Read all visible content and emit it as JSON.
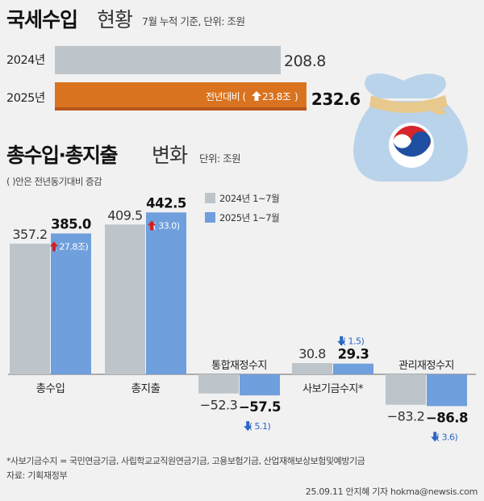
{
  "section1": {
    "title_bold": "국세수입",
    "title_light": "현황",
    "unit": "7월 누적 기준, 단위: 조원",
    "rows": [
      {
        "year": "2024년",
        "value": 208.8,
        "value_label": "208.8",
        "badge": ""
      },
      {
        "year": "2025년",
        "value": 232.6,
        "value_label": "232.6",
        "badge_prefix": "전년대비 (",
        "badge_value": "23.8조",
        "badge_suffix": ")"
      }
    ]
  },
  "section2": {
    "title_bold": "총수입·총지출",
    "title_light": "변화",
    "unit": "단위: 조원",
    "note": "( )안은 전년동기대비 증감",
    "legend": [
      {
        "label": "2024년 1~7월",
        "color": "#bdc5cb"
      },
      {
        "label": "2025년 1~7월",
        "color": "#6f9fdc"
      }
    ]
  },
  "colors": {
    "bg": "#f1f1f1",
    "bar2024": "#bdc5cb",
    "bar2025": "#6f9fdc",
    "orange": "#d9731f",
    "up": "#d41f1f",
    "down": "#2a66c4",
    "bag": "#b9d3ea",
    "bag_rope": "#e7c98d"
  },
  "chart_data": [
    {
      "type": "bar",
      "title": "국세수입 현황",
      "subtitle": "7월 누적 기준, 단위: 조원",
      "categories": [
        "2024년",
        "2025년"
      ],
      "values": [
        208.8,
        232.6
      ],
      "annotation": "전년대비 (23.8조)"
    },
    {
      "type": "bar",
      "title": "총수입·총지출 변화",
      "subtitle": "단위: 조원",
      "categories": [
        "총수입",
        "총지출",
        "통합재정수지",
        "사보기금수지*",
        "관리재정수지"
      ],
      "series": [
        {
          "name": "2024년 1~7월",
          "values": [
            357.2,
            409.5,
            -52.3,
            30.8,
            -83.2
          ]
        },
        {
          "name": "2025년 1~7월",
          "values": [
            385.0,
            442.5,
            -57.5,
            29.3,
            -86.8
          ]
        }
      ],
      "changes": [
        {
          "direction": "up",
          "label": "27.8조"
        },
        {
          "direction": "up",
          "label": "33.0"
        },
        {
          "direction": "down",
          "label": "5.1"
        },
        {
          "direction": "down",
          "label": "1.5"
        },
        {
          "direction": "down",
          "label": "3.6"
        }
      ],
      "value_labels_2024": [
        "357.2",
        "409.5",
        "−52.3",
        "30.8",
        "−83.2"
      ],
      "value_labels_2025": [
        "385.0",
        "442.5",
        "−57.5",
        "29.3",
        "−86.8"
      ]
    }
  ],
  "footnote": "*사보기금수지 = 국민연금기금, 사립학교교직원연금기금, 고용보험기금, 산업재해보상보험및예방기금",
  "source": "자료: 기획재정부",
  "credit": "25.09.11 안지혜 기자 hokma@newsis.com"
}
